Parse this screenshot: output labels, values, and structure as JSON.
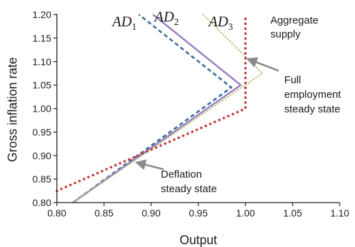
{
  "chart_data": {
    "type": "line",
    "xlabel": "Output",
    "ylabel": "Gross inflation rate",
    "xlim": [
      0.8,
      1.1
    ],
    "ylim": [
      0.8,
      1.2
    ],
    "x_ticks": [
      "0.80",
      "0.85",
      "0.90",
      "0.95",
      "1.00",
      "1.05",
      "1.10"
    ],
    "y_ticks": [
      "0.80",
      "0.85",
      "0.90",
      "0.95",
      "1.00",
      "1.05",
      "1.10",
      "1.15",
      "1.20"
    ],
    "grid": false,
    "series": [
      {
        "name": "AD1",
        "label_text": "AD",
        "label_sub": "1",
        "color": "#3a6e9a",
        "dash": "dashed",
        "points": [
          [
            0.817,
            0.8
          ],
          [
            0.985,
            1.045
          ],
          [
            0.887,
            1.2
          ]
        ]
      },
      {
        "name": "AD2",
        "label_text": "AD",
        "label_sub": "2",
        "color": "#9b80c4",
        "dash": "solid",
        "points": [
          [
            0.817,
            0.8
          ],
          [
            0.995,
            1.05
          ],
          [
            0.902,
            1.2
          ]
        ]
      },
      {
        "name": "AD3",
        "label_text": "AD",
        "label_sub": "3",
        "color": "#b3c46e",
        "dash": "dotted",
        "points": [
          [
            0.817,
            0.8
          ],
          [
            1.018,
            1.075
          ],
          [
            0.955,
            1.2
          ]
        ]
      },
      {
        "name": "Aggregate supply",
        "color": "#c43a3a",
        "dash": "dotted-thick",
        "points": [
          [
            0.8,
            0.825
          ],
          [
            1.0,
            1.0
          ],
          [
            1.0,
            1.2
          ]
        ]
      }
    ],
    "annotations": [
      {
        "name": "aggregate-supply",
        "lines": [
          "Aggregate",
          "supply"
        ]
      },
      {
        "name": "full-employment",
        "lines": [
          "Full",
          "employment",
          "steady state"
        ],
        "arrow_to": [
          1.003,
          1.105
        ]
      },
      {
        "name": "deflation",
        "lines": [
          "Deflation",
          "steady state"
        ],
        "arrow_to": [
          0.885,
          0.885
        ]
      }
    ],
    "colors": {
      "axis": "#1a1a1a",
      "arrow": "#8a8a8a"
    }
  }
}
